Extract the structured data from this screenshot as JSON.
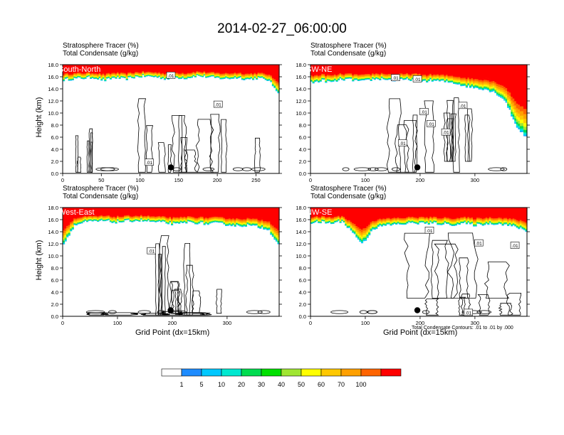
{
  "title": "2014-02-27_06:00:00",
  "footnote": "Total Condensate Contours: .01 to .01 by .000",
  "chart_data": [
    {
      "type": "heatmap",
      "region_label": "South-North",
      "title_lines": [
        "Stratosphere Tracer   (%)",
        "Total Condensate   (g/kg)"
      ],
      "ylabel": "Height (km)",
      "xlabel": "",
      "xlim": [
        0,
        280
      ],
      "xticks": [
        0,
        50,
        100,
        150,
        200,
        250
      ],
      "ylim": [
        0,
        18
      ],
      "yticks": [
        "0.0",
        "2.0",
        "4.0",
        "6.0",
        "8.0",
        "10.0",
        "12.0",
        "14.0",
        "16.0",
        "18.0"
      ],
      "tracer_base_km": [
        15.5,
        15.7,
        15.8,
        15.9,
        15.4,
        15.9,
        15.6,
        16.0,
        16.1,
        16.0,
        15.7,
        15.9,
        15.8,
        16.2,
        16.0,
        15.8,
        15.7,
        15.9,
        15.6,
        15.8,
        15.5,
        13.5
      ],
      "cloud_regions": [
        {
          "x": [
            14,
            40
          ],
          "y": [
            0.2,
            8.0
          ]
        },
        {
          "x": [
            100,
            160
          ],
          "y": [
            0.2,
            15.2
          ]
        },
        {
          "x": [
            150,
            260
          ],
          "y": [
            0.2,
            10.0
          ]
        }
      ],
      "contour_labels": [
        {
          "text": ".01",
          "x": 140,
          "y": 16.2
        },
        {
          "text": ".01",
          "x": 201,
          "y": 11.4
        },
        {
          "text": ".01",
          "x": 112,
          "y": 1.8
        }
      ],
      "marker": {
        "x": 140,
        "y": 1.0
      }
    },
    {
      "type": "heatmap",
      "region_label": "SW-NE",
      "title_lines": [
        "Stratosphere Tracer   (%)",
        "Total Condensate   (g/kg)"
      ],
      "ylabel": "",
      "xlabel": "",
      "xlim": [
        0,
        395
      ],
      "xticks": [
        0,
        100,
        200,
        300
      ],
      "ylim": [
        0,
        18
      ],
      "yticks": [
        "0.0",
        "2.0",
        "4.0",
        "6.0",
        "8.0",
        "10.0",
        "12.0",
        "14.0",
        "16.0",
        "18.0"
      ],
      "tracer_base_km": [
        15.0,
        15.4,
        15.1,
        15.6,
        15.5,
        15.2,
        15.6,
        15.7,
        15.4,
        15.5,
        15.6,
        15.3,
        15.4,
        15.2,
        15.0,
        14.5,
        14.2,
        14.0,
        13.4,
        12.0,
        8.0,
        6.0
      ],
      "cloud_regions": [
        {
          "x": [
            140,
            270
          ],
          "y": [
            0.2,
            15.0
          ]
        },
        {
          "x": [
            230,
            300
          ],
          "y": [
            2.0,
            13.0
          ]
        }
      ],
      "contour_labels": [
        {
          "text": ".01",
          "x": 155,
          "y": 15.8
        },
        {
          "text": ".01",
          "x": 195,
          "y": 15.6
        },
        {
          "text": ".01",
          "x": 207,
          "y": 10.2
        },
        {
          "text": ".01",
          "x": 220,
          "y": 8.2
        },
        {
          "text": ".01",
          "x": 247,
          "y": 6.8
        },
        {
          "text": ".01",
          "x": 278,
          "y": 11.2
        },
        {
          "text": ".01",
          "x": 168,
          "y": 5.0
        }
      ],
      "marker": {
        "x": 195,
        "y": 1.0
      }
    },
    {
      "type": "heatmap",
      "region_label": "West-East",
      "title_lines": [
        "Stratosphere Tracer   (%)",
        "Total Condensate   (g/kg)"
      ],
      "ylabel": "Height (km)",
      "xlabel": "Grid Point (dx=15km)",
      "xlim": [
        0,
        395
      ],
      "xticks": [
        0,
        100,
        200,
        300
      ],
      "ylim": [
        0,
        18
      ],
      "yticks": [
        "0.0",
        "2.0",
        "4.0",
        "6.0",
        "8.0",
        "10.0",
        "12.0",
        "14.0",
        "16.0",
        "18.0"
      ],
      "tracer_base_km": [
        12.0,
        15.0,
        15.6,
        15.7,
        15.8,
        15.6,
        15.7,
        15.9,
        15.8,
        15.6,
        15.5,
        15.2,
        15.6,
        15.5,
        15.3,
        15.4,
        15.2,
        15.0,
        15.1,
        14.8,
        14.5,
        12.0
      ],
      "cloud_regions": [
        {
          "x": [
            150,
            240
          ],
          "y": [
            0.2,
            15.3
          ]
        },
        {
          "x": [
            200,
            290
          ],
          "y": [
            0.5,
            7.0
          ]
        },
        {
          "x": [
            20,
            380
          ],
          "y": [
            0.2,
            0.8
          ]
        }
      ],
      "contour_labels": [
        {
          "text": ".01",
          "x": 162,
          "y": 10.8
        }
      ],
      "marker": {
        "x": 197,
        "y": 1.0
      }
    },
    {
      "type": "heatmap",
      "region_label": "NW-SE",
      "title_lines": [
        "Stratosphere Tracer   (%)",
        "Total Condensate   (g/kg)"
      ],
      "ylabel": "",
      "xlabel": "Grid Point (dx=15km)",
      "xlim": [
        0,
        395
      ],
      "xticks": [
        0,
        100,
        200,
        300
      ],
      "ylim": [
        0,
        18
      ],
      "yticks": [
        "0.0",
        "2.0",
        "4.0",
        "6.0",
        "8.0",
        "10.0",
        "12.0",
        "14.0",
        "16.0",
        "18.0"
      ],
      "tracer_base_km": [
        15.5,
        15.6,
        15.4,
        15.8,
        14.0,
        12.0,
        14.5,
        15.0,
        15.2,
        15.3,
        15.5,
        15.4,
        15.4,
        15.3,
        15.2,
        15.4,
        15.1,
        15.3,
        15.4,
        15.2,
        14.8,
        14.2
      ],
      "cloud_regions": [
        {
          "x": [
            140,
            395
          ],
          "y": [
            3.0,
            15.0
          ]
        },
        {
          "x": [
            220,
            395
          ],
          "y": [
            0.2,
            6.0
          ]
        }
      ],
      "contour_labels": [
        {
          "text": ".01",
          "x": 217,
          "y": 14.2
        },
        {
          "text": ".01",
          "x": 307,
          "y": 12.1
        },
        {
          "text": ".01",
          "x": 373,
          "y": 11.7
        },
        {
          "text": ".01",
          "x": 288,
          "y": 0.6
        }
      ],
      "marker": {
        "x": 195,
        "y": 1.0
      }
    }
  ],
  "colorbar": {
    "label": "Stratosphere Tracer (%)",
    "tick_labels": [
      "1",
      "5",
      "10",
      "20",
      "30",
      "40",
      "50",
      "60",
      "70",
      "100"
    ],
    "colors": [
      "#ffffff",
      "#1e8cff",
      "#00c8ff",
      "#00e8d0",
      "#00dc50",
      "#00e000",
      "#a0e632",
      "#ffff00",
      "#ffc800",
      "#ffa000",
      "#ff6400",
      "#ff0000"
    ]
  },
  "colors": {
    "contour": "#000000",
    "marker": "#000000"
  }
}
